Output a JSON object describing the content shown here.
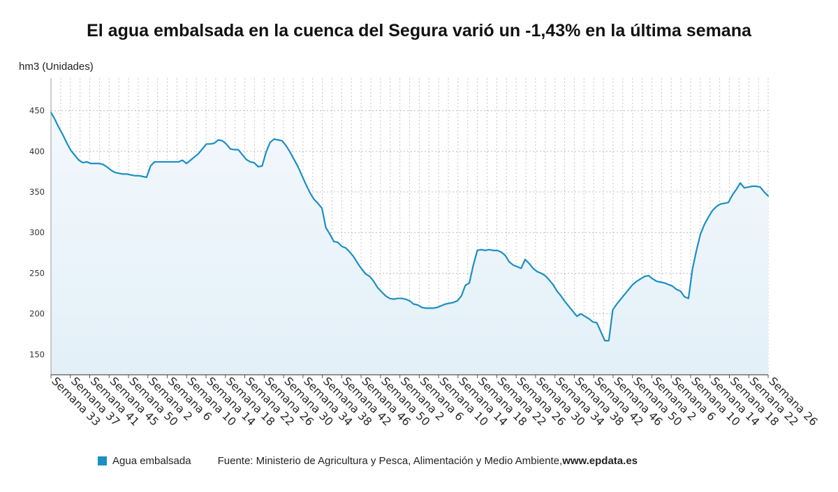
{
  "title": "El agua embalsada en la cuenca del Segura varió un -1,43% en la última semana",
  "unit_label": "hm3 (Unidades)",
  "legend": {
    "label": "Agua embalsada",
    "color": "#1a8fc4"
  },
  "source": {
    "text": "Fuente: Ministerio de Agricultura y Pesca, Alimentación y Medio Ambiente, ",
    "site": "www.epdata.es"
  },
  "chart_data": {
    "type": "area",
    "title": "El agua embalsada en la cuenca del Segura varió un -1,43% en la última semana",
    "ylabel": "hm3 (Unidades)",
    "ylim": [
      125,
      490
    ],
    "yticks": [
      150,
      200,
      250,
      300,
      350,
      400,
      450
    ],
    "grid": true,
    "legend_position": "bottom",
    "line_color": "#1a8fc4",
    "fill_color": "#e3f0f8",
    "tick_labels": [
      "Semana 33",
      "Semana 37",
      "Semana 41",
      "Semana 45",
      "Semana 50",
      "Semana 2",
      "Semana 6",
      "Semana 10",
      "Semana 14",
      "Semana 18",
      "Semana 22",
      "Semana 26",
      "Semana 30",
      "Semana 34",
      "Semana 38",
      "Semana 42",
      "Semana 46",
      "Semana 50",
      "Semana 2",
      "Semana 6",
      "Semana 10",
      "Semana 14",
      "Semana 18",
      "Semana 22",
      "Semana 26",
      "Semana 30",
      "Semana 34",
      "Semana 38",
      "Semana 42",
      "Semana 46",
      "Semana 50",
      "Semana 2",
      "Semana 6",
      "Semana 10",
      "Semana 14",
      "Semana 18",
      "Semana 22",
      "Semana 26"
    ],
    "series": [
      {
        "name": "Agua embalsada",
        "values": [
          448,
          439,
          429,
          420,
          410,
          401,
          395,
          389,
          386,
          387,
          385,
          385,
          385,
          384,
          381,
          377,
          374,
          373,
          372,
          372,
          371,
          370,
          370,
          369,
          368,
          382,
          387,
          387,
          387,
          387,
          387,
          387,
          387,
          389,
          385,
          389,
          393,
          397,
          403,
          409,
          409,
          410,
          414,
          413,
          409,
          403,
          402,
          402,
          396,
          390,
          387,
          386,
          381,
          382,
          399,
          411,
          415,
          414,
          413,
          407,
          399,
          390,
          381,
          370,
          359,
          349,
          341,
          336,
          330,
          306,
          298,
          289,
          288,
          283,
          281,
          276,
          270,
          262,
          255,
          249,
          246,
          240,
          232,
          227,
          222,
          219,
          218,
          219,
          219,
          218,
          216,
          212,
          211,
          208,
          207,
          207,
          207,
          208,
          210,
          212,
          213,
          214,
          216,
          222,
          235,
          238,
          260,
          278,
          279,
          278,
          279,
          278,
          278,
          276,
          272,
          264,
          260,
          258,
          256,
          267,
          262,
          256,
          252,
          250,
          247,
          242,
          236,
          228,
          222,
          215,
          209,
          203,
          197,
          200,
          197,
          194,
          190,
          189,
          178,
          167,
          167,
          205,
          212,
          218,
          224,
          230,
          236,
          240,
          243,
          246,
          247,
          243,
          240,
          239,
          238,
          236,
          234,
          230,
          228,
          221,
          219,
          255,
          278,
          298,
          310,
          319,
          327,
          332,
          335,
          336,
          337,
          346,
          353,
          361,
          355,
          356,
          357,
          357,
          356,
          350,
          345
        ]
      }
    ]
  }
}
